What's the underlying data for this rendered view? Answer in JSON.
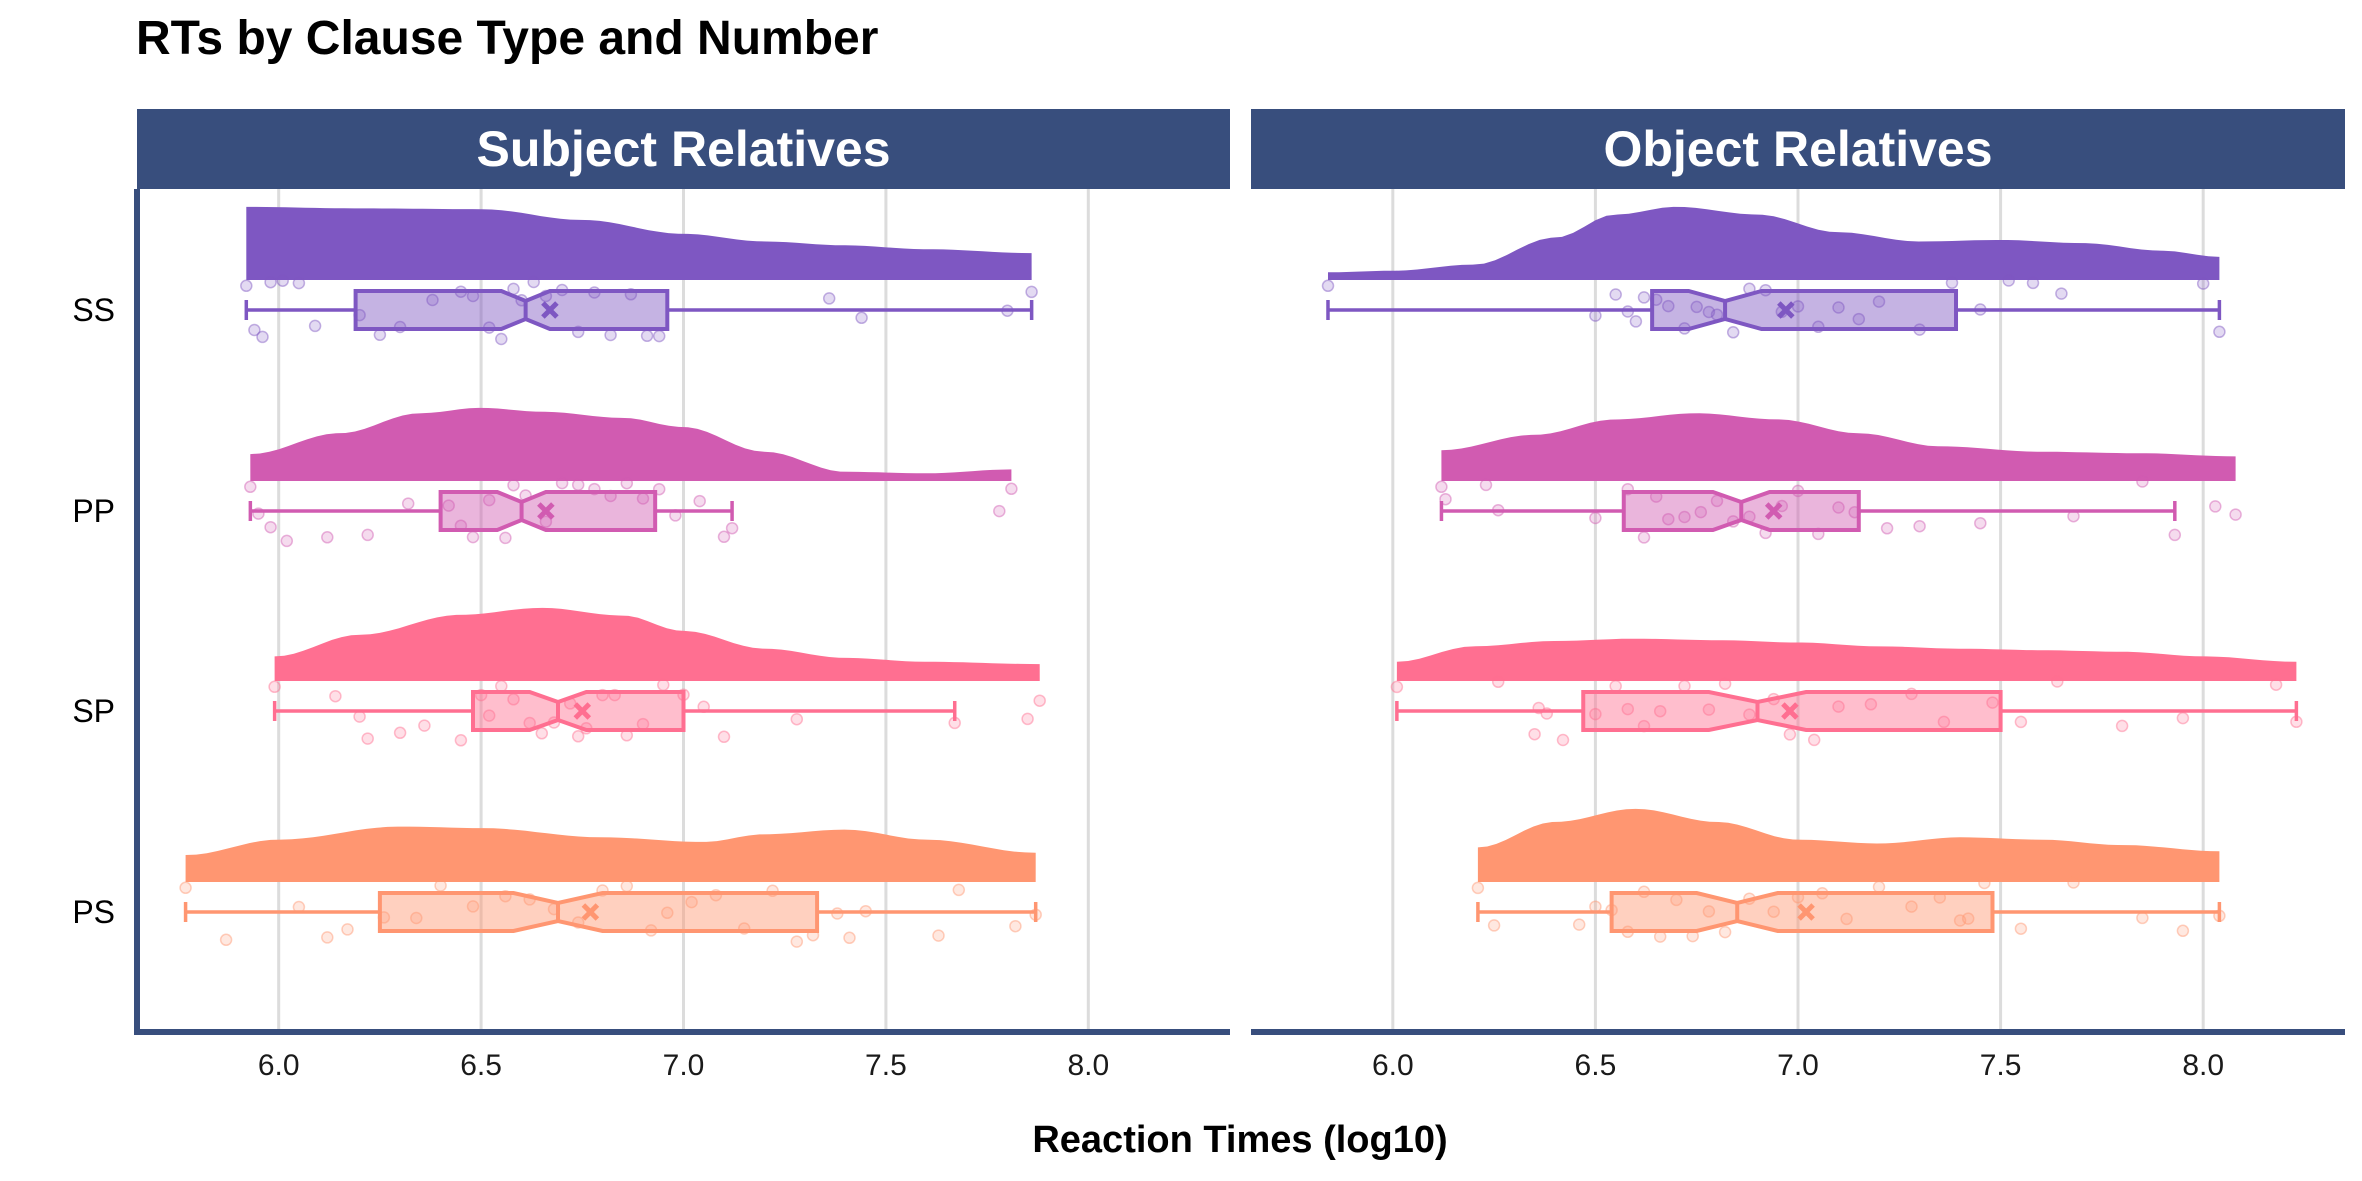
{
  "chart_data": {
    "type": "raincloud",
    "title": "RTs by Clause Type and Number",
    "xlabel": "Reaction Times (log10)",
    "ylabel": "",
    "xlim": [
      5.65,
      8.35
    ],
    "xticks": [
      6.0,
      6.5,
      7.0,
      7.5,
      8.0
    ],
    "xtick_labels": [
      "6.0",
      "6.5",
      "7.0",
      "7.5",
      "8.0"
    ],
    "grid": "vertical major",
    "legend": "none",
    "categories": [
      "SS",
      "PP",
      "SP",
      "PS"
    ],
    "panels": [
      {
        "name": "Subject Relatives",
        "groups": [
          {
            "category": "SS",
            "color": "#7e57c2",
            "min": 5.92,
            "q1": 6.19,
            "median": 6.61,
            "q3": 6.96,
            "max": 7.86,
            "mean": 6.67,
            "notch": [
              6.55,
              6.67
            ],
            "density": [
              [
                5.92,
                0.95
              ],
              [
                6.2,
                0.93
              ],
              [
                6.5,
                0.92
              ],
              [
                6.75,
                0.78
              ],
              [
                7.0,
                0.6
              ],
              [
                7.2,
                0.5
              ],
              [
                7.4,
                0.45
              ],
              [
                7.6,
                0.4
              ],
              [
                7.86,
                0.35
              ]
            ],
            "points": [
              5.92,
              5.94,
              5.96,
              5.98,
              6.01,
              6.05,
              6.09,
              6.2,
              6.25,
              6.3,
              6.38,
              6.45,
              6.48,
              6.52,
              6.55,
              6.58,
              6.6,
              6.63,
              6.66,
              6.7,
              6.74,
              6.78,
              6.82,
              6.87,
              6.91,
              6.94,
              7.36,
              7.44,
              7.8,
              7.86
            ]
          },
          {
            "category": "PP",
            "color": "#d15bb1",
            "min": 5.93,
            "q1": 6.4,
            "median": 6.6,
            "q3": 6.93,
            "max": 7.12,
            "mean": 6.66,
            "notch": [
              6.54,
              6.66
            ],
            "density": [
              [
                5.93,
                0.35
              ],
              [
                6.15,
                0.62
              ],
              [
                6.35,
                0.88
              ],
              [
                6.5,
                0.95
              ],
              [
                6.65,
                0.9
              ],
              [
                6.85,
                0.82
              ],
              [
                7.0,
                0.7
              ],
              [
                7.2,
                0.38
              ],
              [
                7.4,
                0.12
              ],
              [
                7.6,
                0.1
              ],
              [
                7.81,
                0.15
              ]
            ],
            "points": [
              5.93,
              5.95,
              5.98,
              6.02,
              6.12,
              6.22,
              6.32,
              6.42,
              6.45,
              6.48,
              6.52,
              6.56,
              6.58,
              6.61,
              6.66,
              6.7,
              6.74,
              6.78,
              6.82,
              6.86,
              6.9,
              6.94,
              6.98,
              7.04,
              7.1,
              7.12,
              7.78,
              7.81
            ]
          },
          {
            "category": "SP",
            "color": "#ff6f91",
            "min": 5.99,
            "q1": 6.48,
            "median": 6.69,
            "q3": 7.0,
            "max": 7.67,
            "mean": 6.75,
            "notch": [
              6.62,
              6.76
            ],
            "density": [
              [
                5.99,
                0.32
              ],
              [
                6.2,
                0.6
              ],
              [
                6.45,
                0.86
              ],
              [
                6.65,
                0.95
              ],
              [
                6.85,
                0.85
              ],
              [
                7.0,
                0.65
              ],
              [
                7.2,
                0.42
              ],
              [
                7.4,
                0.3
              ],
              [
                7.6,
                0.25
              ],
              [
                7.88,
                0.22
              ]
            ],
            "points": [
              5.99,
              6.14,
              6.2,
              6.22,
              6.3,
              6.36,
              6.45,
              6.5,
              6.52,
              6.55,
              6.58,
              6.62,
              6.65,
              6.68,
              6.72,
              6.74,
              6.76,
              6.8,
              6.83,
              6.86,
              6.9,
              6.95,
              7.0,
              7.05,
              7.1,
              7.28,
              7.67,
              7.85,
              7.88
            ]
          },
          {
            "category": "PS",
            "color": "#ff9671",
            "min": 5.77,
            "q1": 6.25,
            "median": 6.69,
            "q3": 7.33,
            "max": 7.87,
            "mean": 6.77,
            "notch": [
              6.58,
              6.8
            ],
            "density": [
              [
                5.77,
                0.35
              ],
              [
                6.0,
                0.55
              ],
              [
                6.3,
                0.72
              ],
              [
                6.5,
                0.7
              ],
              [
                6.8,
                0.58
              ],
              [
                7.05,
                0.52
              ],
              [
                7.2,
                0.62
              ],
              [
                7.4,
                0.68
              ],
              [
                7.6,
                0.55
              ],
              [
                7.87,
                0.38
              ]
            ],
            "points": [
              5.77,
              5.87,
              6.05,
              6.12,
              6.17,
              6.26,
              6.34,
              6.4,
              6.48,
              6.56,
              6.62,
              6.68,
              6.74,
              6.8,
              6.86,
              6.92,
              6.96,
              7.02,
              7.08,
              7.15,
              7.22,
              7.28,
              7.32,
              7.38,
              7.41,
              7.45,
              7.63,
              7.68,
              7.82,
              7.87
            ]
          }
        ]
      },
      {
        "name": "Object Relatives",
        "groups": [
          {
            "category": "SS",
            "color": "#7e57c2",
            "min": 5.84,
            "q1": 6.64,
            "median": 6.82,
            "q3": 7.39,
            "max": 8.04,
            "mean": 6.97,
            "notch": [
              6.73,
              6.91
            ],
            "density": [
              [
                5.84,
                0.1
              ],
              [
                6.0,
                0.12
              ],
              [
                6.2,
                0.2
              ],
              [
                6.4,
                0.55
              ],
              [
                6.55,
                0.85
              ],
              [
                6.7,
                0.95
              ],
              [
                6.9,
                0.85
              ],
              [
                7.1,
                0.62
              ],
              [
                7.3,
                0.5
              ],
              [
                7.5,
                0.52
              ],
              [
                7.7,
                0.48
              ],
              [
                7.9,
                0.38
              ],
              [
                8.04,
                0.3
              ]
            ],
            "points": [
              5.84,
              6.5,
              6.55,
              6.58,
              6.6,
              6.62,
              6.65,
              6.68,
              6.72,
              6.75,
              6.78,
              6.8,
              6.84,
              6.88,
              6.92,
              6.96,
              7.0,
              7.05,
              7.1,
              7.15,
              7.2,
              7.3,
              7.38,
              7.45,
              7.52,
              7.58,
              7.65,
              8.0,
              8.04
            ]
          },
          {
            "category": "PP",
            "color": "#d15bb1",
            "min": 6.12,
            "q1": 6.57,
            "median": 6.86,
            "q3": 7.15,
            "max": 7.93,
            "mean": 6.94,
            "notch": [
              6.79,
              6.93
            ],
            "density": [
              [
                6.12,
                0.4
              ],
              [
                6.35,
                0.6
              ],
              [
                6.55,
                0.8
              ],
              [
                6.75,
                0.88
              ],
              [
                6.95,
                0.8
              ],
              [
                7.15,
                0.62
              ],
              [
                7.35,
                0.45
              ],
              [
                7.6,
                0.38
              ],
              [
                7.85,
                0.36
              ],
              [
                8.08,
                0.32
              ]
            ],
            "points": [
              6.12,
              6.13,
              6.23,
              6.26,
              6.5,
              6.58,
              6.62,
              6.65,
              6.68,
              6.72,
              6.76,
              6.8,
              6.84,
              6.88,
              6.92,
              6.96,
              7.0,
              7.05,
              7.1,
              7.14,
              7.22,
              7.3,
              7.45,
              7.68,
              7.85,
              7.93,
              8.03,
              8.08
            ]
          },
          {
            "category": "SP",
            "color": "#ff6f91",
            "min": 6.01,
            "q1": 6.47,
            "median": 6.9,
            "q3": 7.5,
            "max": 8.23,
            "mean": 6.98,
            "notch": [
              6.78,
              7.02
            ],
            "density": [
              [
                6.01,
                0.25
              ],
              [
                6.2,
                0.45
              ],
              [
                6.4,
                0.52
              ],
              [
                6.6,
                0.55
              ],
              [
                6.8,
                0.53
              ],
              [
                7.0,
                0.5
              ],
              [
                7.2,
                0.45
              ],
              [
                7.4,
                0.42
              ],
              [
                7.6,
                0.4
              ],
              [
                7.8,
                0.38
              ],
              [
                8.0,
                0.32
              ],
              [
                8.23,
                0.25
              ]
            ],
            "points": [
              6.01,
              6.26,
              6.35,
              6.36,
              6.38,
              6.42,
              6.5,
              6.55,
              6.58,
              6.62,
              6.66,
              6.72,
              6.78,
              6.82,
              6.88,
              6.94,
              6.98,
              7.04,
              7.1,
              7.18,
              7.28,
              7.36,
              7.48,
              7.55,
              7.64,
              7.8,
              7.95,
              8.18,
              8.23
            ]
          },
          {
            "category": "PS",
            "color": "#ff9671",
            "min": 6.21,
            "q1": 6.54,
            "median": 6.85,
            "q3": 7.48,
            "max": 8.04,
            "mean": 7.02,
            "notch": [
              6.75,
              6.95
            ],
            "density": [
              [
                6.21,
                0.45
              ],
              [
                6.4,
                0.78
              ],
              [
                6.6,
                0.95
              ],
              [
                6.8,
                0.78
              ],
              [
                7.0,
                0.55
              ],
              [
                7.2,
                0.5
              ],
              [
                7.4,
                0.58
              ],
              [
                7.6,
                0.55
              ],
              [
                7.8,
                0.48
              ],
              [
                8.04,
                0.4
              ]
            ],
            "points": [
              6.21,
              6.25,
              6.46,
              6.5,
              6.54,
              6.58,
              6.62,
              6.66,
              6.7,
              6.74,
              6.78,
              6.82,
              6.88,
              6.94,
              7.0,
              7.06,
              7.12,
              7.2,
              7.28,
              7.35,
              7.4,
              7.42,
              7.46,
              7.55,
              7.68,
              7.85,
              7.95,
              8.04
            ]
          }
        ]
      }
    ]
  }
}
